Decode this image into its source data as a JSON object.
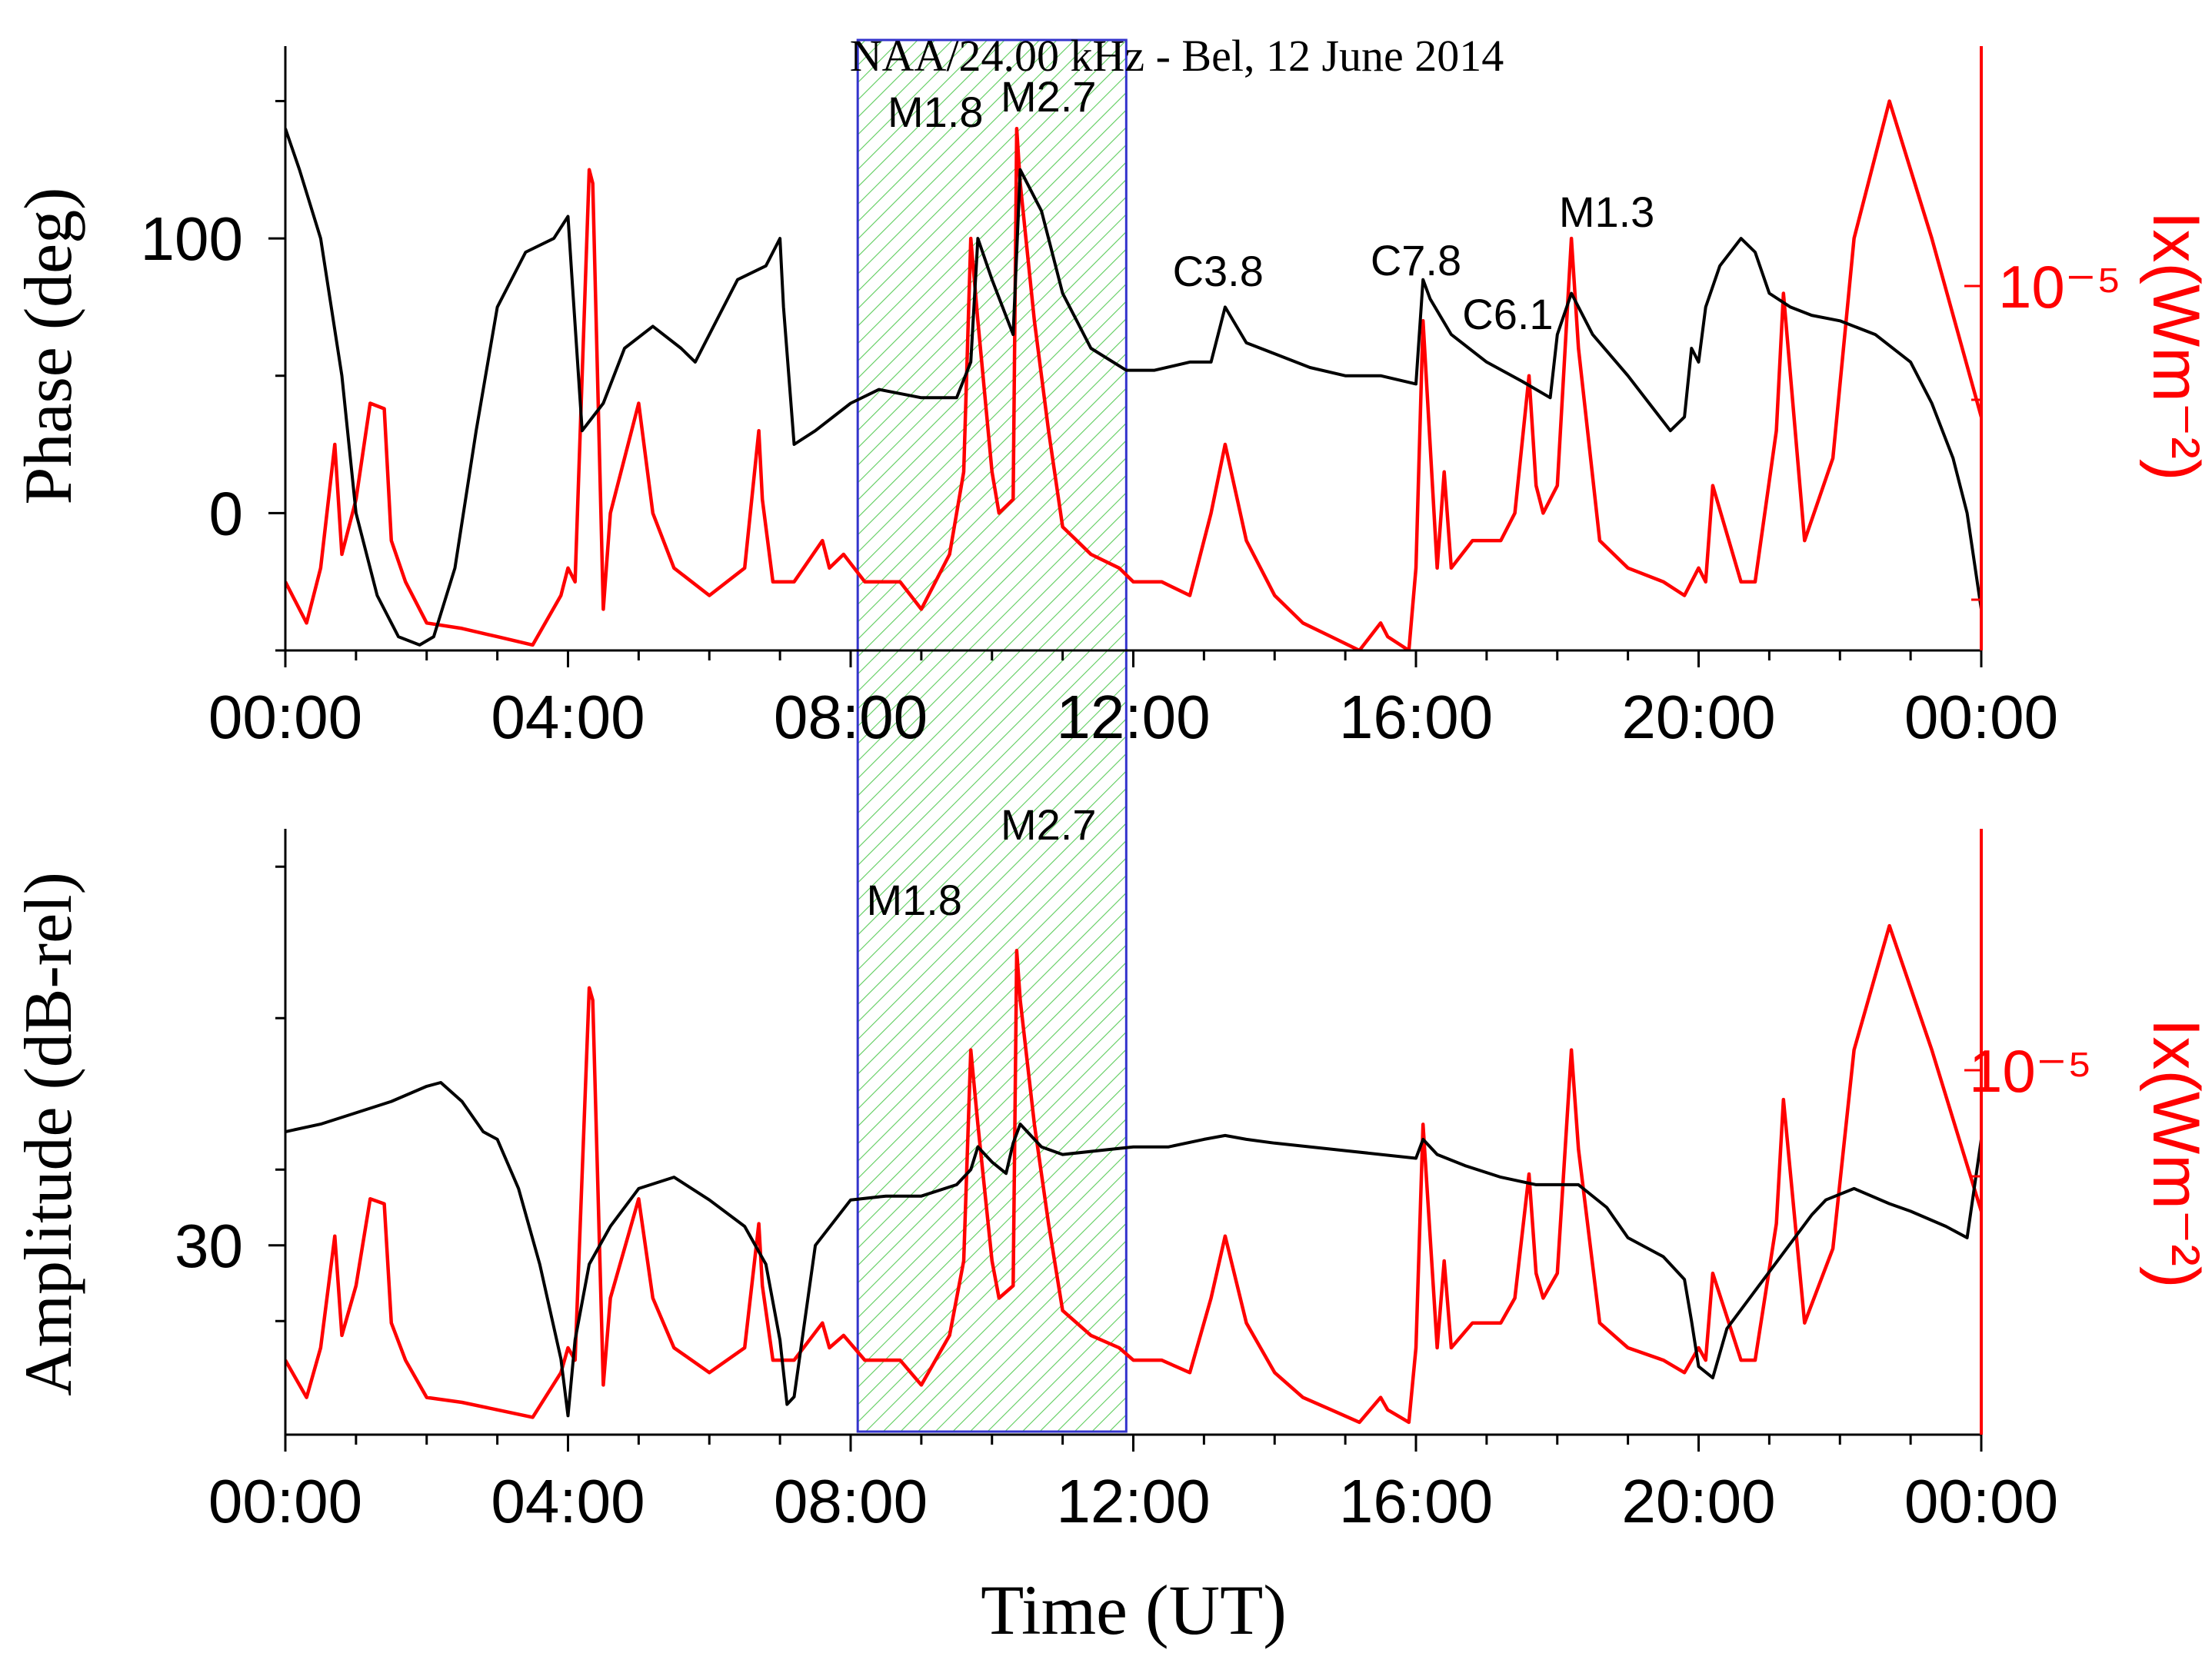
{
  "chart_data": {
    "type": "line",
    "title": "NAA/24.00 kHz - Bel, 12 June 2014",
    "xlabel": "Time (UT)",
    "x_ticks": [
      "00:00",
      "04:00",
      "08:00",
      "12:00",
      "16:00",
      "20:00",
      "00:00"
    ],
    "x_range_hours": [
      0,
      24
    ],
    "highlight_interval_hours": [
      8.1,
      11.9
    ],
    "colors": {
      "vlf": "#000000",
      "xray": "#ff0000",
      "highlight_border": "#3333cc",
      "hatch": "#5ccc5c"
    },
    "panels": [
      {
        "name": "phase",
        "ylabel": "Phase (deg)",
        "ylim": [
          -50,
          170
        ],
        "y_ticks": [
          0,
          100
        ],
        "y2label": "Ix(Wm⁻²)",
        "y2_tick": "10⁻⁵",
        "flare_labels": [
          {
            "text": "M1.8",
            "time": 9.2
          },
          {
            "text": "M2.7",
            "time": 10.8
          },
          {
            "text": "C3.8",
            "time": 13.2
          },
          {
            "text": "C7.8",
            "time": 16.0
          },
          {
            "text": "C6.1",
            "time": 17.3
          },
          {
            "text": "M1.3",
            "time": 18.7
          }
        ],
        "series_vlf": {
          "name": "Phase",
          "x": [
            0,
            0.2,
            0.5,
            0.8,
            1.0,
            1.3,
            1.6,
            1.9,
            2.1,
            2.4,
            2.7,
            3.0,
            3.4,
            3.8,
            4.0,
            4.05,
            4.2,
            4.5,
            4.8,
            5.2,
            5.6,
            5.8,
            6.1,
            6.4,
            6.8,
            7.0,
            7.05,
            7.2,
            7.5,
            8.0,
            8.4,
            9.0,
            9.5,
            9.7,
            9.8,
            10.0,
            10.3,
            10.4,
            10.7,
            11.0,
            11.4,
            11.9,
            12.3,
            12.8,
            13.1,
            13.3,
            13.6,
            14.0,
            14.5,
            15.0,
            15.5,
            16.0,
            16.1,
            16.2,
            16.5,
            17.0,
            17.5,
            17.9,
            18.0,
            18.2,
            18.5,
            19.0,
            19.3,
            19.6,
            19.8,
            19.9,
            20.0,
            20.1,
            20.3,
            20.6,
            20.8,
            21.0,
            21.3,
            21.6,
            22.0,
            22.5,
            23.0,
            23.3,
            23.6,
            23.8,
            24.0
          ],
          "y": [
            140,
            125,
            100,
            50,
            0,
            -30,
            -45,
            -48,
            -45,
            -20,
            30,
            75,
            95,
            100,
            108,
            88,
            30,
            40,
            60,
            68,
            60,
            55,
            70,
            85,
            90,
            100,
            75,
            25,
            30,
            40,
            45,
            42,
            42,
            55,
            100,
            85,
            65,
            125,
            110,
            80,
            60,
            52,
            52,
            55,
            55,
            75,
            62,
            58,
            53,
            50,
            50,
            47,
            85,
            78,
            65,
            55,
            48,
            42,
            65,
            80,
            65,
            50,
            40,
            30,
            35,
            60,
            55,
            75,
            90,
            100,
            95,
            80,
            75,
            72,
            70,
            65,
            55,
            40,
            20,
            0,
            -35
          ]
        },
        "series_xray": {
          "name": "X-ray flux",
          "x": [
            0,
            0.3,
            0.5,
            0.7,
            0.8,
            1.0,
            1.2,
            1.4,
            1.5,
            1.7,
            2.0,
            2.5,
            3.0,
            3.5,
            3.9,
            4.0,
            4.1,
            4.3,
            4.35,
            4.5,
            4.6,
            4.8,
            5.0,
            5.2,
            5.5,
            6.0,
            6.5,
            6.7,
            6.75,
            6.9,
            7.2,
            7.6,
            7.7,
            7.9,
            8.2,
            8.7,
            9.0,
            9.4,
            9.5,
            9.6,
            9.7,
            9.8,
            10.0,
            10.1,
            10.3,
            10.35,
            10.4,
            10.6,
            10.8,
            11.0,
            11.4,
            11.8,
            12.0,
            12.4,
            12.8,
            13.1,
            13.3,
            13.6,
            14.0,
            14.4,
            14.8,
            15.2,
            15.5,
            15.6,
            15.9,
            16.0,
            16.1,
            16.3,
            16.4,
            16.5,
            16.8,
            17.2,
            17.4,
            17.6,
            17.7,
            17.8,
            18.0,
            18.2,
            18.3,
            18.6,
            19.0,
            19.5,
            19.8,
            20.0,
            20.1,
            20.2,
            20.6,
            20.8,
            21.1,
            21.2,
            21.5,
            21.9,
            22.2,
            22.7,
            23.3,
            24.0
          ],
          "y": [
            -25,
            -40,
            -20,
            25,
            -15,
            5,
            40,
            38,
            -10,
            -25,
            -40,
            -42,
            -45,
            -48,
            -30,
            -20,
            -25,
            125,
            120,
            -35,
            0,
            20,
            40,
            0,
            -20,
            -30,
            -20,
            30,
            5,
            -25,
            -25,
            -10,
            -20,
            -15,
            -25,
            -25,
            -35,
            -15,
            0,
            15,
            100,
            70,
            15,
            0,
            5,
            140,
            120,
            70,
            30,
            -5,
            -15,
            -20,
            -25,
            -25,
            -30,
            0,
            25,
            -10,
            -30,
            -40,
            -45,
            -50,
            -40,
            -45,
            -50,
            -20,
            70,
            -20,
            15,
            -20,
            -10,
            -10,
            0,
            50,
            10,
            0,
            10,
            100,
            60,
            -10,
            -20,
            -25,
            -30,
            -20,
            -25,
            10,
            -25,
            -25,
            30,
            80,
            -10,
            20,
            100,
            150,
            100,
            35
          ]
        }
      },
      {
        "name": "amplitude",
        "ylabel": "Amplitude (dB-rel)",
        "ylim": [
          25,
          41
        ],
        "y_ticks": [
          30
        ],
        "y2label": "Ix(Wm⁻²)",
        "y2_tick": "10⁻⁵",
        "flare_labels": [
          {
            "text": "M1.8",
            "time": 8.9
          },
          {
            "text": "M2.7",
            "time": 10.8
          }
        ],
        "series_vlf": {
          "name": "Amplitude",
          "x": [
            0,
            0.5,
            1.0,
            1.5,
            2.0,
            2.2,
            2.5,
            2.8,
            3.0,
            3.3,
            3.6,
            3.9,
            4.0,
            4.1,
            4.3,
            4.6,
            5.0,
            5.5,
            6.0,
            6.5,
            6.8,
            7.0,
            7.1,
            7.2,
            7.5,
            8.0,
            8.5,
            9.0,
            9.5,
            9.7,
            9.8,
            10.0,
            10.2,
            10.3,
            10.4,
            10.7,
            11.0,
            11.5,
            12.0,
            12.5,
            13.0,
            13.3,
            13.6,
            14.0,
            15.0,
            16.0,
            16.1,
            16.3,
            16.7,
            17.2,
            17.7,
            18.3,
            18.7,
            19.0,
            19.5,
            19.8,
            19.9,
            20.0,
            20.2,
            20.4,
            20.8,
            21.2,
            21.6,
            21.8,
            22.2,
            22.7,
            23.0,
            23.5,
            23.8,
            24.0
          ],
          "y": [
            33.0,
            33.2,
            33.5,
            33.8,
            34.2,
            34.3,
            33.8,
            33.0,
            32.8,
            31.5,
            29.5,
            27.0,
            25.5,
            27.5,
            29.5,
            30.5,
            31.5,
            31.8,
            31.2,
            30.5,
            29.5,
            27.5,
            25.8,
            26.0,
            30.0,
            31.2,
            31.3,
            31.3,
            31.6,
            32.0,
            32.6,
            32.2,
            31.9,
            32.7,
            33.2,
            32.6,
            32.4,
            32.5,
            32.6,
            32.6,
            32.8,
            32.9,
            32.8,
            32.7,
            32.5,
            32.3,
            32.8,
            32.4,
            32.1,
            31.8,
            31.6,
            31.6,
            31.0,
            30.2,
            29.7,
            29.1,
            28.0,
            26.8,
            26.5,
            27.8,
            28.8,
            29.8,
            30.8,
            31.2,
            31.5,
            31.1,
            30.9,
            30.5,
            30.2,
            32.8
          ]
        },
        "series_xray": {
          "name": "X-ray flux",
          "x": [
            0,
            0.3,
            0.5,
            0.7,
            0.8,
            1.0,
            1.2,
            1.4,
            1.5,
            1.7,
            2.0,
            2.5,
            3.0,
            3.5,
            3.9,
            4.0,
            4.1,
            4.3,
            4.35,
            4.5,
            4.6,
            4.8,
            5.0,
            5.2,
            5.5,
            6.0,
            6.5,
            6.7,
            6.75,
            6.9,
            7.2,
            7.6,
            7.7,
            7.9,
            8.2,
            8.7,
            9.0,
            9.4,
            9.5,
            9.6,
            9.7,
            9.8,
            10.0,
            10.1,
            10.3,
            10.35,
            10.4,
            10.6,
            10.8,
            11.0,
            11.4,
            11.8,
            12.0,
            12.4,
            12.8,
            13.1,
            13.3,
            13.6,
            14.0,
            14.4,
            14.8,
            15.2,
            15.5,
            15.6,
            15.9,
            16.0,
            16.1,
            16.3,
            16.4,
            16.5,
            16.8,
            17.2,
            17.4,
            17.6,
            17.7,
            17.8,
            18.0,
            18.2,
            18.3,
            18.6,
            19.0,
            19.5,
            19.8,
            20.0,
            20.1,
            20.2,
            20.6,
            20.8,
            21.1,
            21.2,
            21.5,
            21.9,
            22.2,
            22.7,
            23.3,
            24.0
          ],
          "y": [
            -25,
            -40,
            -20,
            25,
            -15,
            5,
            40,
            38,
            -10,
            -25,
            -40,
            -42,
            -45,
            -48,
            -30,
            -20,
            -25,
            125,
            120,
            -35,
            0,
            20,
            40,
            0,
            -20,
            -30,
            -20,
            30,
            5,
            -25,
            -25,
            -10,
            -20,
            -15,
            -25,
            -25,
            -35,
            -15,
            0,
            15,
            100,
            70,
            15,
            0,
            5,
            140,
            120,
            70,
            30,
            -5,
            -15,
            -20,
            -25,
            -25,
            -30,
            0,
            25,
            -10,
            -30,
            -40,
            -45,
            -50,
            -40,
            -45,
            -50,
            -20,
            70,
            -20,
            15,
            -20,
            -10,
            -10,
            0,
            50,
            10,
            0,
            10,
            100,
            60,
            -10,
            -20,
            -25,
            -30,
            -20,
            -25,
            10,
            -25,
            -25,
            30,
            80,
            -10,
            20,
            100,
            150,
            100,
            35
          ]
        }
      }
    ]
  }
}
